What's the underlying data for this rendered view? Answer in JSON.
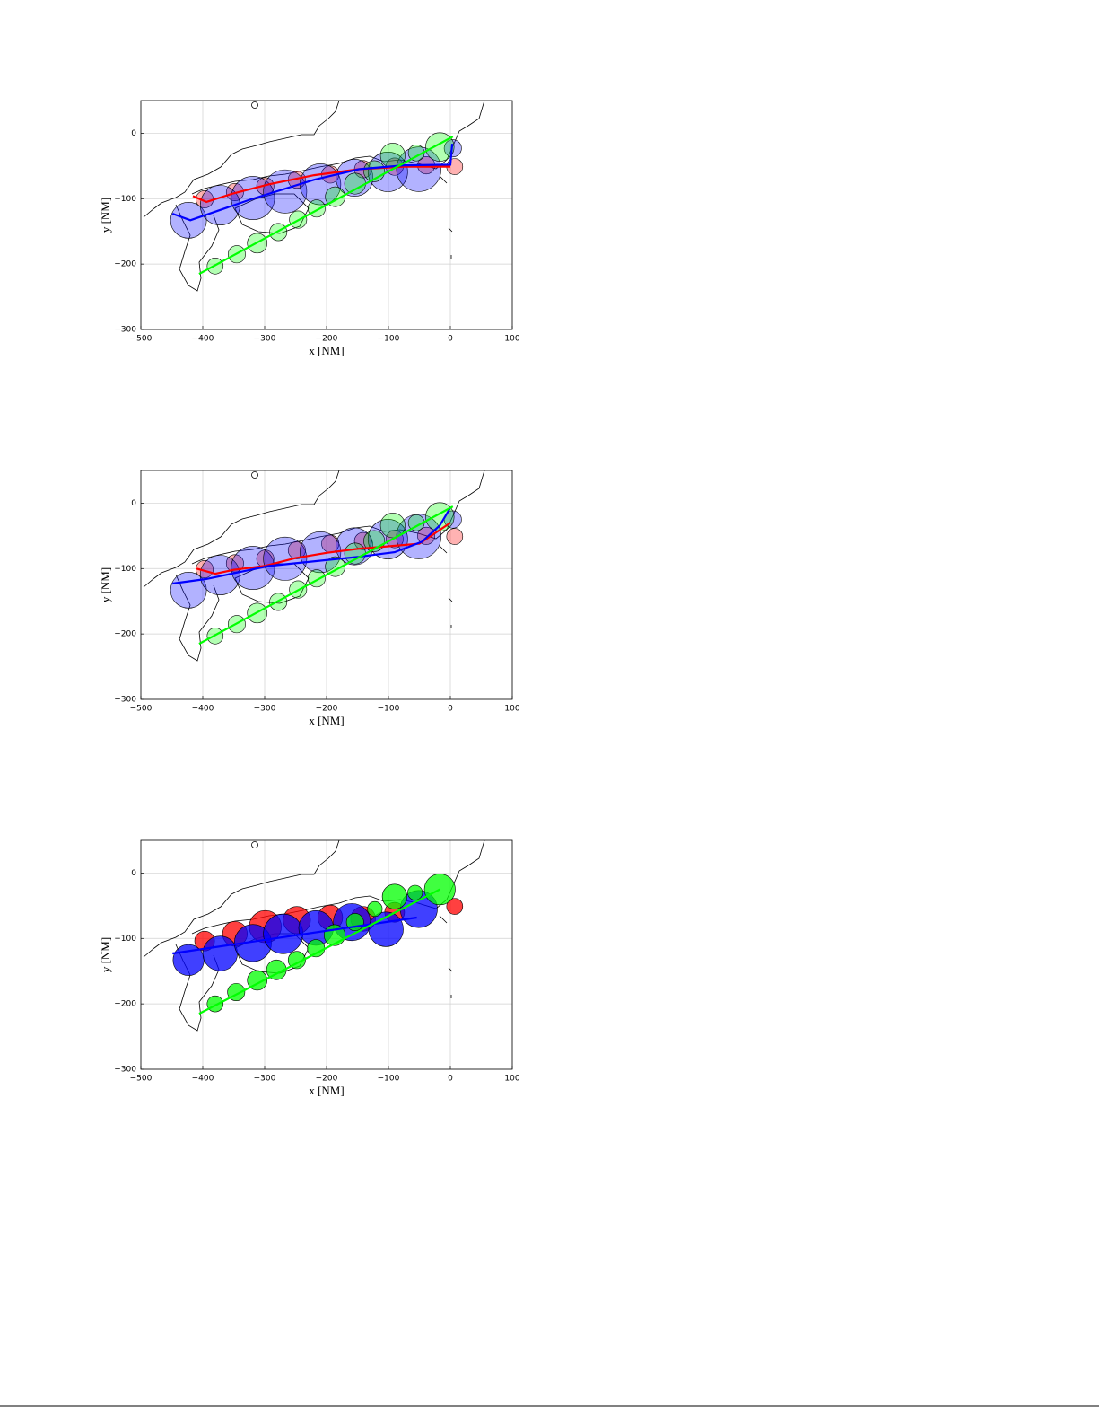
{
  "chart_data": [
    {
      "type": "bubble-map",
      "xlabel": "x [NM]",
      "ylabel": "y [NM]",
      "alpha": 0.3,
      "xlim": [
        -500,
        100
      ],
      "ylim": [
        -300,
        50
      ],
      "xticks": [
        {
          "value": -500,
          "label": "−500"
        },
        {
          "value": -400,
          "label": "−400"
        },
        {
          "value": -300,
          "label": "−300"
        },
        {
          "value": -200,
          "label": "−200"
        },
        {
          "value": -100,
          "label": "−100"
        },
        0,
        100
      ],
      "yticks": [
        {
          "value": -300,
          "label": "−300"
        },
        {
          "value": -200,
          "label": "−200"
        },
        {
          "value": -100,
          "label": "−100"
        },
        0
      ],
      "grid": true,
      "series": [
        {
          "color": "#ff0000",
          "line": {
            "x": [
              -416,
              -394,
              -351,
              -293,
              -220,
              -148,
              -75,
              0
            ],
            "y": [
              -96,
              -105,
              -92,
              -78,
              -64,
              -55,
              -51,
              -51
            ]
          },
          "circles": {
            "x": [
              -397,
              -348,
              -299,
              -248,
              -194,
              -141,
              -90,
              -39,
              7
            ],
            "y": [
              -101,
              -90,
              -81,
              -71,
              -63,
              -55,
              -51,
              -49,
              -51
            ],
            "r": [
              14,
              14,
              14,
              14,
              14,
              14,
              14,
              14,
              13
            ]
          }
        },
        {
          "color": "#0000ff",
          "line": {
            "x": [
              -449,
              -420,
              -322,
              -220,
              -148,
              -75,
              0,
              3
            ],
            "y": [
              -123,
              -133,
              -101,
              -71,
              -55,
              -49,
              -48,
              -16
            ]
          },
          "circles": {
            "x": [
              -423,
              -372,
              -319,
              -267,
              -210,
              -155,
              -101,
              -51,
              4
            ],
            "y": [
              -133,
              -110,
              -99,
              -89,
              -78,
              -68,
              -59,
              -55,
              -23
            ],
            "r": [
              29,
              32,
              35,
              35,
              33,
              30,
              32,
              36,
              14
            ]
          }
        },
        {
          "color": "#00ff00",
          "line": {
            "x": [
              -406,
              4
            ],
            "y": [
              -215,
              -5
            ]
          },
          "circles": {
            "x": [
              -380,
              -345,
              -312,
              -278,
              -246,
              -216,
              -186,
              -154,
              -123,
              -93,
              -55,
              -17
            ],
            "y": [
              -203,
              -185,
              -168,
              -151,
              -132,
              -115,
              -97,
              -77,
              -58,
              -34,
              -30,
              -21
            ],
            "r": [
              13,
              14,
              16,
              14,
              14,
              14,
              16,
              17,
              17,
              20,
              13,
              23
            ]
          }
        }
      ]
    },
    {
      "type": "bubble-map",
      "xlabel": "x [NM]",
      "ylabel": "y [NM]",
      "alpha": 0.3,
      "xlim": [
        -500,
        100
      ],
      "ylim": [
        -300,
        50
      ],
      "xticks": [
        {
          "value": -500,
          "label": "−500"
        },
        {
          "value": -400,
          "label": "−400"
        },
        {
          "value": -300,
          "label": "−300"
        },
        {
          "value": -200,
          "label": "−200"
        },
        {
          "value": -100,
          "label": "−100"
        },
        0,
        100
      ],
      "yticks": [
        {
          "value": -300,
          "label": "−300"
        },
        {
          "value": -200,
          "label": "−200"
        },
        {
          "value": -100,
          "label": "−100"
        },
        0
      ],
      "grid": true,
      "series": [
        {
          "color": "#ff0000",
          "line": {
            "x": [
              -410,
              -380,
              -350,
              -300,
              -250,
              -200,
              -150,
              -100,
              -50,
              0
            ],
            "y": [
              -100,
              -108,
              -102,
              -96,
              -84,
              -76,
              -70,
              -66,
              -62,
              -30
            ]
          },
          "circles": {
            "x": [
              -397,
              -348,
              -299,
              -248,
              -194,
              -141,
              -90,
              -39,
              7
            ],
            "y": [
              -101,
              -92,
              -85,
              -72,
              -62,
              -58,
              -55,
              -50,
              -51
            ],
            "r": [
              14,
              14,
              14,
              14,
              14,
              14,
              14,
              14,
              13
            ]
          }
        },
        {
          "color": "#0000ff",
          "line": {
            "x": [
              -449,
              -394,
              -293,
              -148,
              -90,
              -46,
              -17,
              0
            ],
            "y": [
              -123,
              -116,
              -96,
              -82,
              -75,
              -59,
              -34,
              -7
            ]
          },
          "circles": {
            "x": [
              -423,
              -372,
              -319,
              -267,
              -210,
              -155,
              -101,
              -51,
              4
            ],
            "y": [
              -133,
              -110,
              -99,
              -85,
              -75,
              -66,
              -55,
              -51,
              -25
            ],
            "r": [
              29,
              32,
              35,
              35,
              33,
              30,
              32,
              36,
              14
            ]
          }
        },
        {
          "color": "#00ff00",
          "line": {
            "x": [
              -406,
              4
            ],
            "y": [
              -215,
              -5
            ]
          },
          "circles": {
            "x": [
              -380,
              -345,
              -312,
              -278,
              -246,
              -216,
              -186,
              -154,
              -123,
              -93,
              -55,
              -17
            ],
            "y": [
              -203,
              -185,
              -168,
              -151,
              -132,
              -115,
              -97,
              -77,
              -58,
              -34,
              -30,
              -21
            ],
            "r": [
              13,
              14,
              16,
              14,
              14,
              14,
              16,
              17,
              17,
              20,
              13,
              23
            ]
          }
        }
      ]
    },
    {
      "type": "bubble-map",
      "xlabel": "x [NM]",
      "ylabel": "y [NM]",
      "alpha": 0.75,
      "xlim": [
        -500,
        100
      ],
      "ylim": [
        -300,
        50
      ],
      "xticks": [
        {
          "value": -500,
          "label": "−500"
        },
        {
          "value": -400,
          "label": "−400"
        },
        {
          "value": -300,
          "label": "−300"
        },
        {
          "value": -200,
          "label": "−200"
        },
        {
          "value": -100,
          "label": "−100"
        },
        0,
        100
      ],
      "yticks": [
        {
          "value": -300,
          "label": "−300"
        },
        {
          "value": -200,
          "label": "−200"
        },
        {
          "value": -100,
          "label": "−100"
        },
        0
      ],
      "grid": true,
      "series": [
        {
          "color": "#ff0000",
          "line": {
            "x": [],
            "y": []
          },
          "circles": {
            "x": [
              -397,
              -348,
              -299,
              -248,
              -194,
              -141,
              -90,
              7
            ],
            "y": [
              -104,
              -93,
              -82,
              -72,
              -68,
              -70,
              -60,
              -51
            ],
            "r": [
              16,
              20,
              26,
              22,
              20,
              20,
              16,
              13
            ]
          }
        },
        {
          "color": "#0000ff",
          "line": {
            "x": [
              -449,
              -54
            ],
            "y": [
              -123,
              -68
            ]
          },
          "circles": {
            "x": [
              -423,
              -372,
              -319,
              -270,
              -217,
              -159,
              -104,
              -51
            ],
            "y": [
              -133,
              -123,
              -107,
              -93,
              -84,
              -75,
              -86,
              -55
            ],
            "r": [
              25,
              28,
              30,
              32,
              28,
              30,
              28,
              30
            ]
          }
        },
        {
          "color": "#00ff00",
          "line": {
            "x": [
              -406,
              -17
            ],
            "y": [
              -215,
              -25
            ]
          },
          "circles": {
            "x": [
              -380,
              -346,
              -312,
              -281,
              -248,
              -217,
              -187,
              -154,
              -122,
              -90,
              -57,
              -17
            ],
            "y": [
              -200,
              -182,
              -164,
              -148,
              -133,
              -115,
              -95,
              -75,
              -55,
              -36,
              -30,
              -25
            ],
            "r": [
              13,
              14,
              16,
              16,
              14,
              14,
              17,
              14,
              12,
              20,
              12,
              25
            ]
          }
        }
      ]
    }
  ]
}
